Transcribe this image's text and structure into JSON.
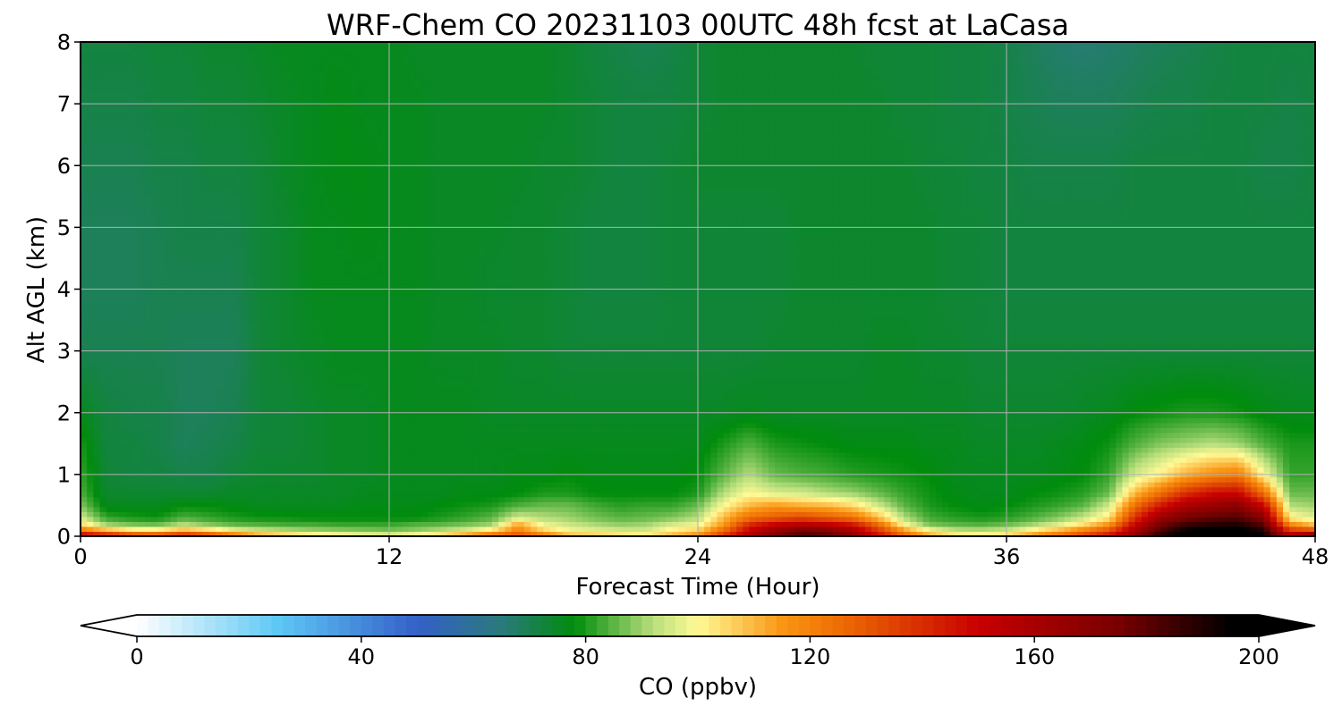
{
  "chart_data": {
    "type": "heatmap",
    "title": "WRF-Chem CO  20231103 00UTC 48h fcst at LaCasa",
    "xlabel": "Forecast Time (Hour)",
    "ylabel": "Alt AGL (km)",
    "xlim": [
      0,
      48
    ],
    "ylim": [
      0,
      8
    ],
    "xticks": [
      0,
      12,
      24,
      36,
      48
    ],
    "yticks": [
      0,
      1,
      2,
      3,
      4,
      5,
      6,
      7,
      8
    ],
    "grid": true,
    "colorbar": {
      "label": "CO  (ppbv)",
      "min": 0,
      "max": 200,
      "ticks": [
        0,
        40,
        80,
        120,
        160,
        200
      ],
      "extend": "both",
      "stops": [
        {
          "value": 0,
          "color": "#ffffff"
        },
        {
          "value": 25,
          "color": "#5ec8f5"
        },
        {
          "value": 50,
          "color": "#3460c8"
        },
        {
          "value": 65,
          "color": "#2a7a7c"
        },
        {
          "value": 78,
          "color": "#008c0c"
        },
        {
          "value": 92,
          "color": "#b8de7c"
        },
        {
          "value": 100,
          "color": "#fffa96"
        },
        {
          "value": 115,
          "color": "#fa9614"
        },
        {
          "value": 125,
          "color": "#ee6e04"
        },
        {
          "value": 150,
          "color": "#c80000"
        },
        {
          "value": 175,
          "color": "#780000"
        },
        {
          "value": 195,
          "color": "#000000"
        }
      ]
    },
    "series": [
      {
        "field": "CO mixing ratio (ppbv)",
        "x_hours": [
          0,
          1,
          2,
          3,
          4,
          5,
          6,
          7,
          8,
          9,
          10,
          11,
          12,
          13,
          14,
          15,
          16,
          17,
          18,
          19,
          20,
          21,
          22,
          23,
          24,
          25,
          26,
          27,
          28,
          29,
          30,
          31,
          32,
          33,
          34,
          35,
          36,
          37,
          38,
          39,
          40,
          41,
          42,
          43,
          44,
          45,
          46,
          47,
          48
        ],
        "y_km": [
          0,
          0.1,
          0.2,
          0.3,
          0.5,
          0.7,
          1.0,
          1.5,
          2.0,
          3.0,
          4.0,
          5.0,
          6.0,
          7.0,
          8.0
        ],
        "values": [
          [
            162,
            152,
            142,
            140,
            148,
            140,
            128,
            118,
            112,
            108,
            104,
            102,
            100,
            104,
            110,
            120,
            130,
            135,
            125,
            112,
            110,
            108,
            105,
            112,
            120,
            140,
            160,
            175,
            185,
            182,
            170,
            150,
            130,
            115,
            108,
            106,
            108,
            118,
            128,
            138,
            150,
            170,
            190,
            200,
            200,
            200,
            195,
            165,
            185
          ],
          [
            122,
            112,
            104,
            104,
            112,
            106,
            98,
            94,
            92,
            90,
            89,
            88,
            87,
            89,
            92,
            96,
            104,
            120,
            106,
            99,
            97,
            95,
            95,
            102,
            106,
            125,
            150,
            165,
            175,
            172,
            160,
            138,
            115,
            100,
            93,
            92,
            94,
            102,
            110,
            120,
            132,
            160,
            182,
            195,
            198,
            198,
            190,
            138,
            132
          ],
          [
            105,
            90,
            87,
            86,
            92,
            88,
            85,
            84,
            83,
            83,
            82,
            82,
            82,
            84,
            85,
            87,
            90,
            112,
            98,
            94,
            91,
            89,
            90,
            95,
            98,
            115,
            140,
            150,
            155,
            152,
            145,
            125,
            100,
            87,
            85,
            84,
            86,
            90,
            96,
            104,
            116,
            150,
            175,
            185,
            188,
            190,
            180,
            118,
            108
          ],
          [
            95,
            82,
            80,
            79,
            84,
            82,
            80,
            79,
            79,
            78,
            78,
            78,
            78,
            78,
            80,
            82,
            85,
            95,
            92,
            90,
            87,
            85,
            86,
            88,
            92,
            110,
            125,
            130,
            135,
            130,
            125,
            110,
            92,
            83,
            81,
            80,
            81,
            84,
            88,
            94,
            104,
            140,
            165,
            175,
            180,
            182,
            170,
            102,
            96
          ],
          [
            88,
            76,
            76,
            76,
            78,
            78,
            77,
            76,
            76,
            76,
            76,
            77,
            77,
            77,
            78,
            79,
            80,
            84,
            86,
            86,
            83,
            81,
            82,
            82,
            86,
            100,
            110,
            115,
            112,
            110,
            105,
            95,
            85,
            80,
            78,
            77,
            78,
            80,
            82,
            85,
            95,
            125,
            145,
            160,
            165,
            170,
            150,
            92,
            90
          ],
          [
            84,
            74,
            74,
            74,
            74,
            74,
            75,
            75,
            75,
            75,
            75,
            76,
            76,
            76,
            76,
            77,
            77,
            78,
            80,
            80,
            78,
            78,
            78,
            78,
            80,
            92,
            100,
            96,
            95,
            92,
            90,
            86,
            82,
            79,
            77,
            76,
            76,
            78,
            79,
            81,
            86,
            110,
            125,
            140,
            148,
            150,
            125,
            86,
            86
          ],
          [
            82,
            73,
            72,
            72,
            71,
            71,
            73,
            74,
            74,
            74,
            75,
            75,
            76,
            76,
            76,
            76,
            76,
            77,
            77,
            78,
            77,
            77,
            77,
            77,
            78,
            85,
            92,
            86,
            84,
            83,
            81,
            80,
            79,
            78,
            76,
            76,
            76,
            76,
            77,
            78,
            82,
            95,
            102,
            112,
            118,
            122,
            100,
            82,
            82
          ],
          [
            80,
            72,
            72,
            71,
            69,
            70,
            71,
            73,
            73,
            74,
            75,
            75,
            76,
            76,
            76,
            76,
            76,
            76,
            76,
            76,
            76,
            76,
            76,
            76,
            76,
            80,
            84,
            80,
            79,
            78,
            77,
            77,
            77,
            76,
            76,
            75,
            75,
            75,
            76,
            77,
            79,
            84,
            88,
            90,
            92,
            90,
            84,
            80,
            80
          ],
          [
            76,
            72,
            71,
            71,
            69,
            69,
            70,
            73,
            73,
            74,
            75,
            75,
            76,
            76,
            76,
            76,
            75,
            75,
            75,
            75,
            75,
            75,
            75,
            75,
            75,
            75,
            76,
            75,
            75,
            75,
            75,
            75,
            75,
            75,
            75,
            74,
            74,
            74,
            74,
            75,
            76,
            78,
            79,
            80,
            80,
            79,
            77,
            76,
            76
          ],
          [
            70,
            70,
            70,
            70,
            69,
            69,
            69,
            73,
            74,
            75,
            76,
            76,
            76,
            76,
            75,
            75,
            75,
            74,
            74,
            73,
            73,
            73,
            73,
            73,
            73,
            73,
            73,
            74,
            74,
            74,
            74,
            75,
            75,
            74,
            74,
            73,
            73,
            73,
            73,
            73,
            73,
            73,
            73,
            73,
            73,
            73,
            73,
            73,
            73
          ],
          [
            69,
            69,
            69,
            70,
            70,
            70,
            70,
            73,
            74,
            76,
            76,
            76,
            76,
            76,
            75,
            75,
            74,
            74,
            74,
            73,
            72,
            72,
            72,
            73,
            73,
            73,
            73,
            73,
            74,
            74,
            74,
            74,
            74,
            74,
            73,
            73,
            72,
            72,
            72,
            72,
            72,
            72,
            72,
            72,
            72,
            72,
            72,
            72,
            72
          ],
          [
            69,
            69,
            69,
            70,
            71,
            71,
            71,
            73,
            74,
            76,
            76,
            77,
            76,
            76,
            75,
            75,
            75,
            74,
            74,
            73,
            72,
            72,
            72,
            73,
            73,
            73,
            73,
            73,
            74,
            74,
            74,
            74,
            74,
            74,
            73,
            73,
            72,
            72,
            72,
            72,
            72,
            72,
            72,
            72,
            72,
            72,
            72,
            72,
            72
          ],
          [
            70,
            70,
            70,
            71,
            71,
            72,
            72,
            73,
            75,
            76,
            77,
            77,
            76,
            76,
            75,
            75,
            75,
            75,
            74,
            74,
            73,
            72,
            72,
            73,
            74,
            74,
            74,
            74,
            74,
            74,
            74,
            74,
            74,
            73,
            73,
            72,
            72,
            71,
            71,
            71,
            71,
            72,
            72,
            72,
            72,
            72,
            71,
            71,
            72
          ],
          [
            71,
            71,
            71,
            72,
            72,
            73,
            73,
            74,
            75,
            76,
            77,
            76,
            76,
            76,
            75,
            75,
            75,
            75,
            75,
            74,
            73,
            72,
            72,
            72,
            73,
            74,
            74,
            74,
            74,
            74,
            74,
            74,
            73,
            73,
            72,
            72,
            71,
            70,
            69,
            69,
            69,
            70,
            71,
            71,
            72,
            72,
            72,
            71,
            72
          ],
          [
            72,
            72,
            72,
            73,
            73,
            74,
            74,
            75,
            76,
            76,
            76,
            76,
            76,
            75,
            75,
            75,
            75,
            75,
            75,
            74,
            72,
            71,
            70,
            71,
            73,
            74,
            74,
            74,
            74,
            74,
            74,
            73,
            73,
            73,
            72,
            72,
            71,
            69,
            67,
            66,
            67,
            68,
            69,
            70,
            71,
            72,
            72,
            72,
            72
          ]
        ]
      }
    ]
  }
}
